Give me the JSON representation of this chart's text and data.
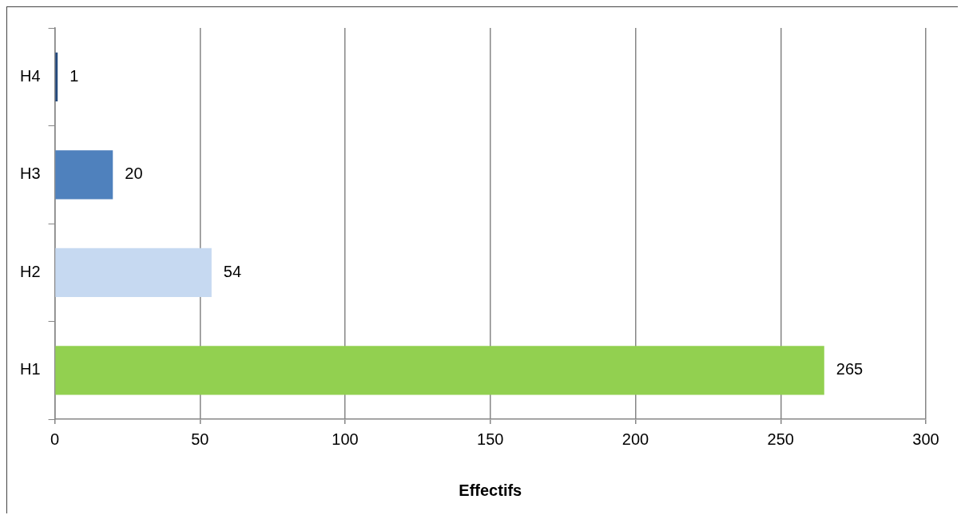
{
  "chart_data": {
    "type": "bar",
    "orientation": "horizontal",
    "categories": [
      "H4",
      "H3",
      "H2",
      "H1"
    ],
    "values": [
      1,
      20,
      54,
      265
    ],
    "colors": [
      "#254a7c",
      "#4f81bd",
      "#c6d9f1",
      "#92d050"
    ],
    "xlabel": "Effectifs",
    "xlim": [
      0,
      300
    ],
    "xticks": [
      0,
      50,
      100,
      150,
      200,
      250,
      300
    ],
    "grid": "x",
    "data_labels": true,
    "legend": false
  }
}
